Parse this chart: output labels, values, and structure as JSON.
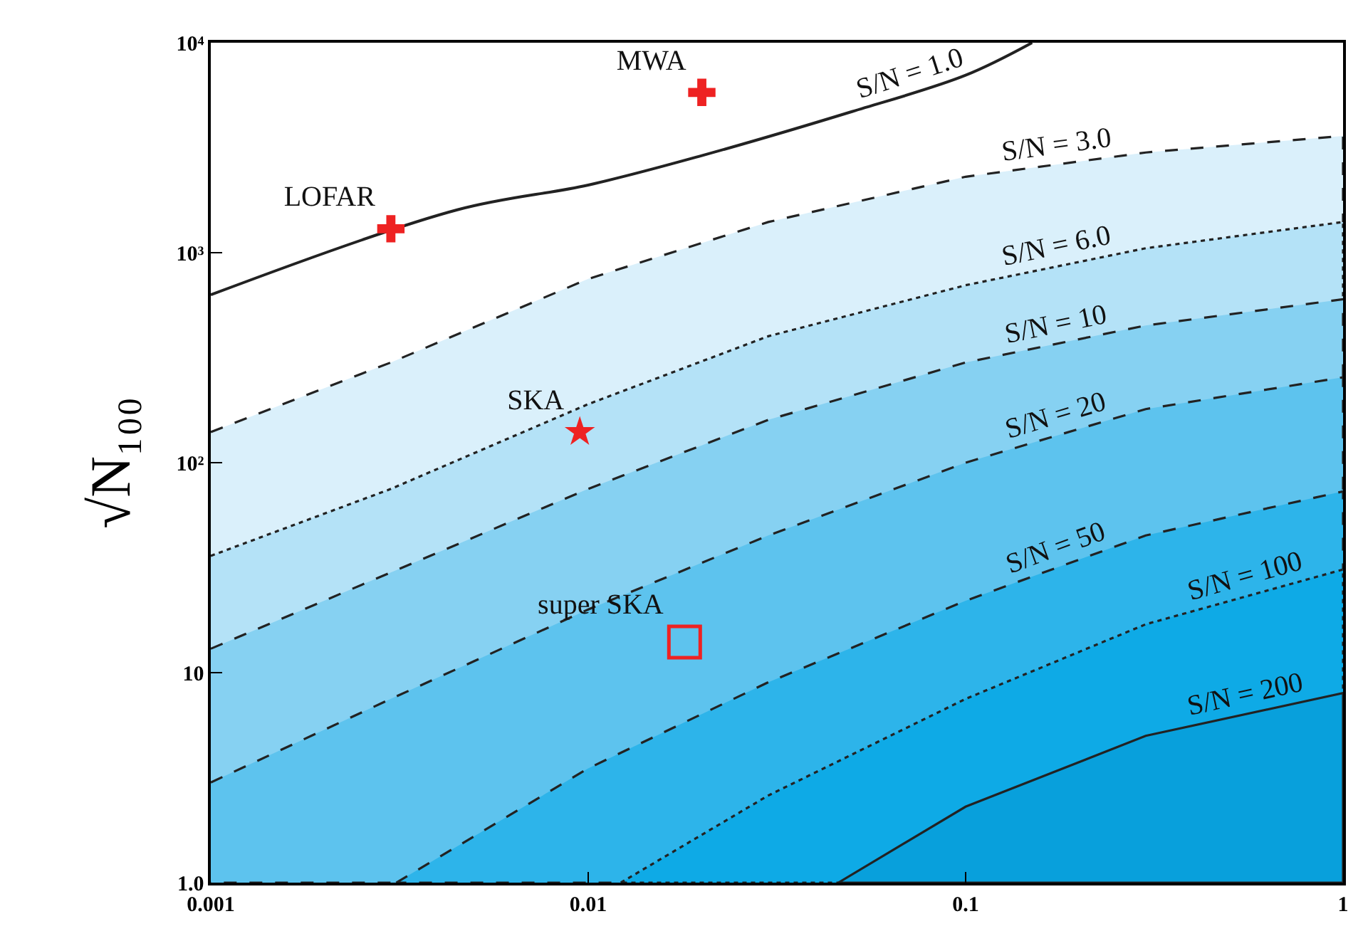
{
  "chart_data": {
    "type": "line",
    "ylabel": "√N₁₀₀",
    "log": "xy",
    "grid": false,
    "xlim": [
      0.001,
      1
    ],
    "ylim": [
      1,
      10000
    ],
    "xticks": [
      {
        "value": 0.001,
        "label": "0.001"
      },
      {
        "value": 0.01,
        "label": "0.01"
      },
      {
        "value": 0.1,
        "label": "0.1"
      },
      1
    ],
    "yticks": [
      {
        "value": 1,
        "label": "1.0"
      },
      10,
      {
        "value": 100,
        "label": "10²"
      },
      {
        "value": 1000,
        "label": "10³"
      },
      {
        "value": 10000,
        "label": "10⁴"
      }
    ],
    "series": [
      {
        "name": "S/N = 1.0",
        "color": "#222222",
        "line_style": "solid",
        "x": [
          0.001,
          0.0045,
          0.01,
          0.02,
          0.05,
          0.1,
          0.15
        ],
        "values": [
          630,
          1600,
          2100,
          2900,
          4700,
          7000,
          10000
        ]
      },
      {
        "name": "S/N = 3.0",
        "type": "area",
        "color": "#daf0fb",
        "line_style": "dashed",
        "x": [
          0.001,
          0.003,
          0.01,
          0.03,
          0.1,
          0.3,
          1
        ],
        "values": [
          140,
          300,
          750,
          1400,
          2300,
          3000,
          3600
        ]
      },
      {
        "name": "S/N = 6.0",
        "type": "area",
        "color": "#b4e2f7",
        "line_style": "dotted",
        "x": [
          0.001,
          0.003,
          0.01,
          0.03,
          0.1,
          0.3,
          1
        ],
        "values": [
          36,
          75,
          190,
          400,
          700,
          1050,
          1400
        ]
      },
      {
        "name": "S/N = 10",
        "type": "area",
        "color": "#86d1f2",
        "line_style": "dashed",
        "x": [
          0.001,
          0.003,
          0.01,
          0.03,
          0.1,
          0.3,
          1
        ],
        "values": [
          13,
          30,
          75,
          160,
          300,
          450,
          600
        ]
      },
      {
        "name": "S/N = 20",
        "type": "area",
        "color": "#5dc3ee",
        "line_style": "dashed",
        "x": [
          0.001,
          0.003,
          0.01,
          0.03,
          0.1,
          0.3,
          1
        ],
        "values": [
          3,
          7.5,
          20,
          45,
          100,
          180,
          255
        ]
      },
      {
        "name": "S/N = 50",
        "type": "area",
        "color": "#2db4ea",
        "line_style": "dashed",
        "x": [
          0.0031,
          0.01,
          0.03,
          0.1,
          0.3,
          1
        ],
        "values": [
          1,
          3.5,
          9,
          22,
          45,
          73
        ]
      },
      {
        "name": "S/N = 100",
        "type": "area",
        "color": "#0eaae6",
        "line_style": "dotted",
        "x": [
          0.0122,
          0.03,
          0.1,
          0.3,
          1
        ],
        "values": [
          1,
          2.6,
          7.5,
          17,
          31
        ]
      },
      {
        "name": "S/N = 200",
        "type": "area",
        "color": "#08a0dc",
        "line_style": "solid",
        "x": [
          0.046,
          0.1,
          0.3,
          1
        ],
        "values": [
          1,
          2.3,
          5,
          8
        ]
      },
      {
        "name": "LOFAR",
        "type": "scatter",
        "marker": "cross",
        "color": "#ee2222",
        "x": [
          0.003
        ],
        "values": [
          1300
        ]
      },
      {
        "name": "MWA",
        "type": "scatter",
        "marker": "cross",
        "color": "#ee2222",
        "x": [
          0.02
        ],
        "values": [
          5800
        ]
      },
      {
        "name": "SKA",
        "type": "scatter",
        "marker": "star",
        "color": "#ee2222",
        "x": [
          0.0095
        ],
        "values": [
          140
        ]
      },
      {
        "name": "super SKA",
        "type": "scatter",
        "marker": "square",
        "color": "#ee2222",
        "x": [
          0.018
        ],
        "values": [
          14
        ]
      }
    ]
  }
}
